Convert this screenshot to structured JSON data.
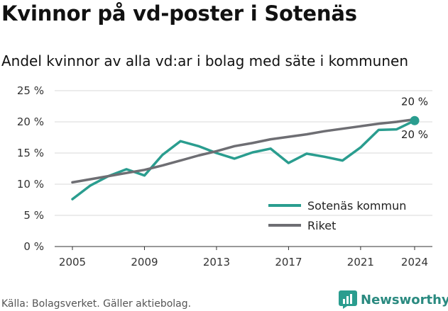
{
  "title": "Kvinnor på vd-poster i Sotenäs",
  "subtitle": "Andel kvinnor av alla vd:ar i bolag med säte i kommunen",
  "source": "Källa: Bolagsverket. Gäller aktiebolag.",
  "brand": {
    "name": "Newsworthy",
    "icon": "bar-chart-icon",
    "color": "#2a9d8f"
  },
  "chart_data": {
    "type": "line",
    "title": "",
    "xlabel": "",
    "ylabel": "",
    "xlim": [
      2005,
      2024
    ],
    "ylim": [
      0,
      25
    ],
    "x_ticks": [
      2005,
      2009,
      2013,
      2017,
      2021,
      2024
    ],
    "y_ticks": [
      0,
      5,
      10,
      15,
      20,
      25
    ],
    "y_tick_labels": [
      "0 %",
      "5 %",
      "10 %",
      "15 %",
      "20 %",
      "25 %"
    ],
    "grid": true,
    "legend_position": "bottom-right",
    "x": [
      2005,
      2006,
      2007,
      2008,
      2009,
      2010,
      2011,
      2012,
      2013,
      2014,
      2015,
      2016,
      2017,
      2018,
      2019,
      2020,
      2021,
      2022,
      2023,
      2024
    ],
    "series": [
      {
        "name": "Sotenäs kommun",
        "color": "#2a9d8f",
        "values": [
          7.6,
          9.8,
          11.3,
          12.4,
          11.4,
          14.7,
          16.9,
          16.1,
          15.0,
          14.1,
          15.1,
          15.7,
          13.4,
          14.9,
          14.4,
          13.8,
          15.9,
          18.7,
          18.8,
          20.2
        ],
        "end_label": "20 %"
      },
      {
        "name": "Riket",
        "color": "#6e6e73",
        "values": [
          10.3,
          10.8,
          11.3,
          11.8,
          12.3,
          13.0,
          13.8,
          14.6,
          15.3,
          16.1,
          16.6,
          17.2,
          17.6,
          18.0,
          18.5,
          18.9,
          19.3,
          19.7,
          20.0,
          20.4
        ],
        "end_label": "20 %"
      }
    ]
  }
}
